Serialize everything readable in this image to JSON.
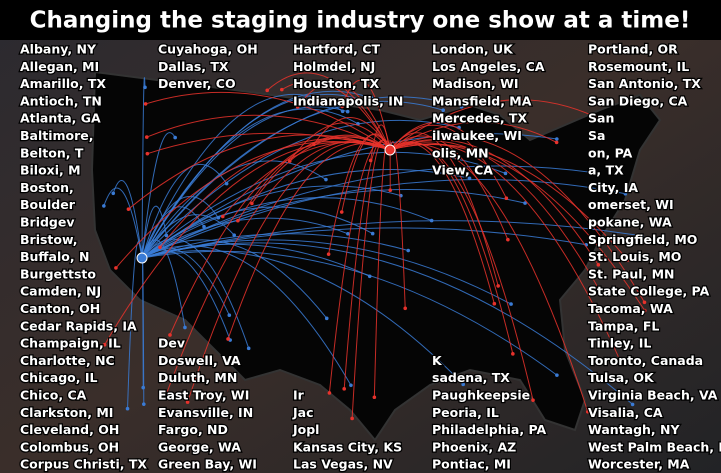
{
  "header": {
    "title": "Changing the staging industry one show at a time!"
  },
  "columns": [
    [
      "Albany, NY",
      "Allegan, MI",
      "Amarillo, TX",
      "Antioch, TN",
      "Atlanta, GA",
      "Baltimore,",
      "Belton, T",
      "Biloxi, M",
      "Boston,",
      "Boulder",
      "Bridgev",
      "Bristow,",
      "Buffalo, N",
      "Burgettsto",
      "Camden, NJ",
      "Canton, OH",
      "Cedar Rapids, IA",
      "Champaign, IL",
      "Charlotte, NC",
      "Chicago, IL",
      "Chico, CA",
      "Clarkston, MI",
      "Cleveland, OH",
      "Colombus, OH",
      "Corpus Christi, TX"
    ],
    [
      "Cuyahoga, OH",
      "Dallas, TX",
      "Denver, CO",
      null,
      null,
      null,
      null,
      null,
      null,
      null,
      null,
      null,
      null,
      null,
      null,
      null,
      null,
      "Dev",
      "Doswell, VA",
      "Duluth, MN",
      "East Troy, WI",
      "Evansville, IN",
      "Fargo, ND",
      "George, WA",
      "Green Bay, WI"
    ],
    [
      "Hartford, CT",
      "Holmdel, NJ",
      "Houston, TX",
      "Indianapolis, IN",
      null,
      null,
      null,
      null,
      null,
      null,
      null,
      null,
      null,
      null,
      null,
      null,
      null,
      null,
      null,
      null,
      "Ir",
      "Jac",
      "Jopl",
      "Kansas City, KS",
      "Las Vegas, NV"
    ],
    [
      "London, UK",
      "Los Angeles, CA",
      "Madison, WI",
      "Mansfield, MA",
      "Mercedes, TX",
      "ilwaukee, WI",
      "olis, MN",
      "View, CA",
      null,
      null,
      null,
      null,
      null,
      null,
      null,
      null,
      null,
      null,
      "K",
      "sadena, TX",
      "Paughkeepsie",
      "Peoria, IL",
      "Philadelphia, PA",
      "Phoenix, AZ",
      "Pontiac, MI"
    ],
    [
      "Portland, OR",
      "Rosemount, IL",
      "San Antonio, TX",
      "San Diego, CA",
      "San",
      "Sa",
      "on, PA",
      "a, TX",
      "City, IA",
      "omerset, WI",
      "pokane, WA",
      "Springfield, MO",
      "St. Louis, MO",
      "St. Paul, MN",
      "State College, PA",
      "Tacoma, WA",
      "Tampa, FL",
      "Tinley, IL",
      "Toronto, Canada",
      "Tulsa, OK",
      "Virginia Beach, VA",
      "Visalia, CA",
      "Wantagh, NY",
      "West Palm Beach, FL",
      "Worcester, MA"
    ]
  ]
}
